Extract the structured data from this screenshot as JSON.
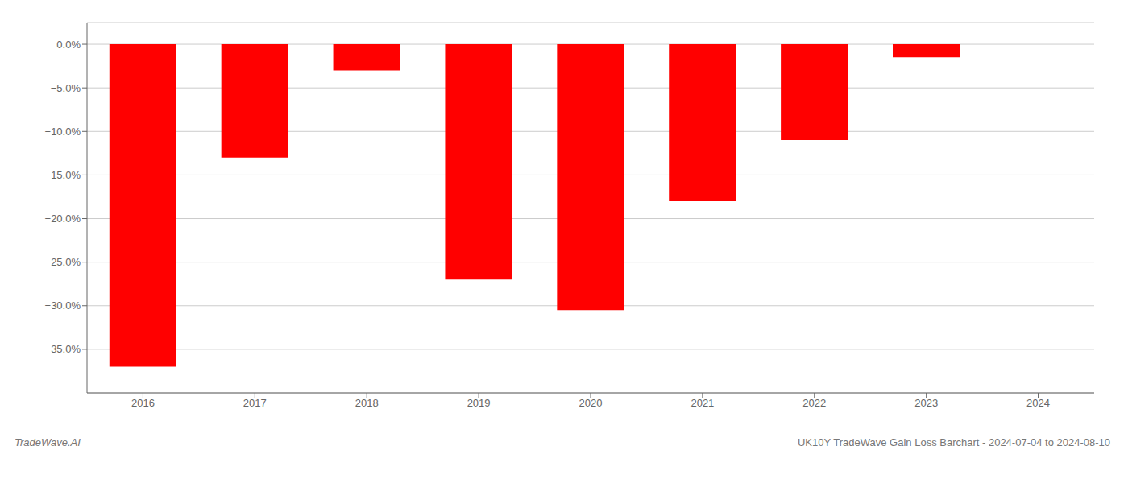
{
  "chart_data": {
    "type": "bar",
    "categories": [
      "2016",
      "2017",
      "2018",
      "2019",
      "2020",
      "2021",
      "2022",
      "2023",
      "2024"
    ],
    "values": [
      -37.0,
      -13.0,
      -3.0,
      -27.0,
      -30.5,
      -18.0,
      -11.0,
      -1.5,
      0
    ],
    "color": "#ff0000",
    "ylim": [
      -40,
      2.5
    ],
    "yticks": [
      {
        "value": 0,
        "label": "0.0%"
      },
      {
        "value": -5,
        "label": "−5.0%"
      },
      {
        "value": -10,
        "label": "−10.0%"
      },
      {
        "value": -15,
        "label": "−15.0%"
      },
      {
        "value": -20,
        "label": "−20.0%"
      },
      {
        "value": -25,
        "label": "−25.0%"
      },
      {
        "value": -30,
        "label": "−30.0%"
      },
      {
        "value": -35,
        "label": "−35.0%"
      }
    ],
    "grid": true,
    "annotations": [
      "TradeWave.AI",
      "UK10Y TradeWave Gain Loss Barchart - 2024-07-04 to 2024-08-10"
    ]
  }
}
